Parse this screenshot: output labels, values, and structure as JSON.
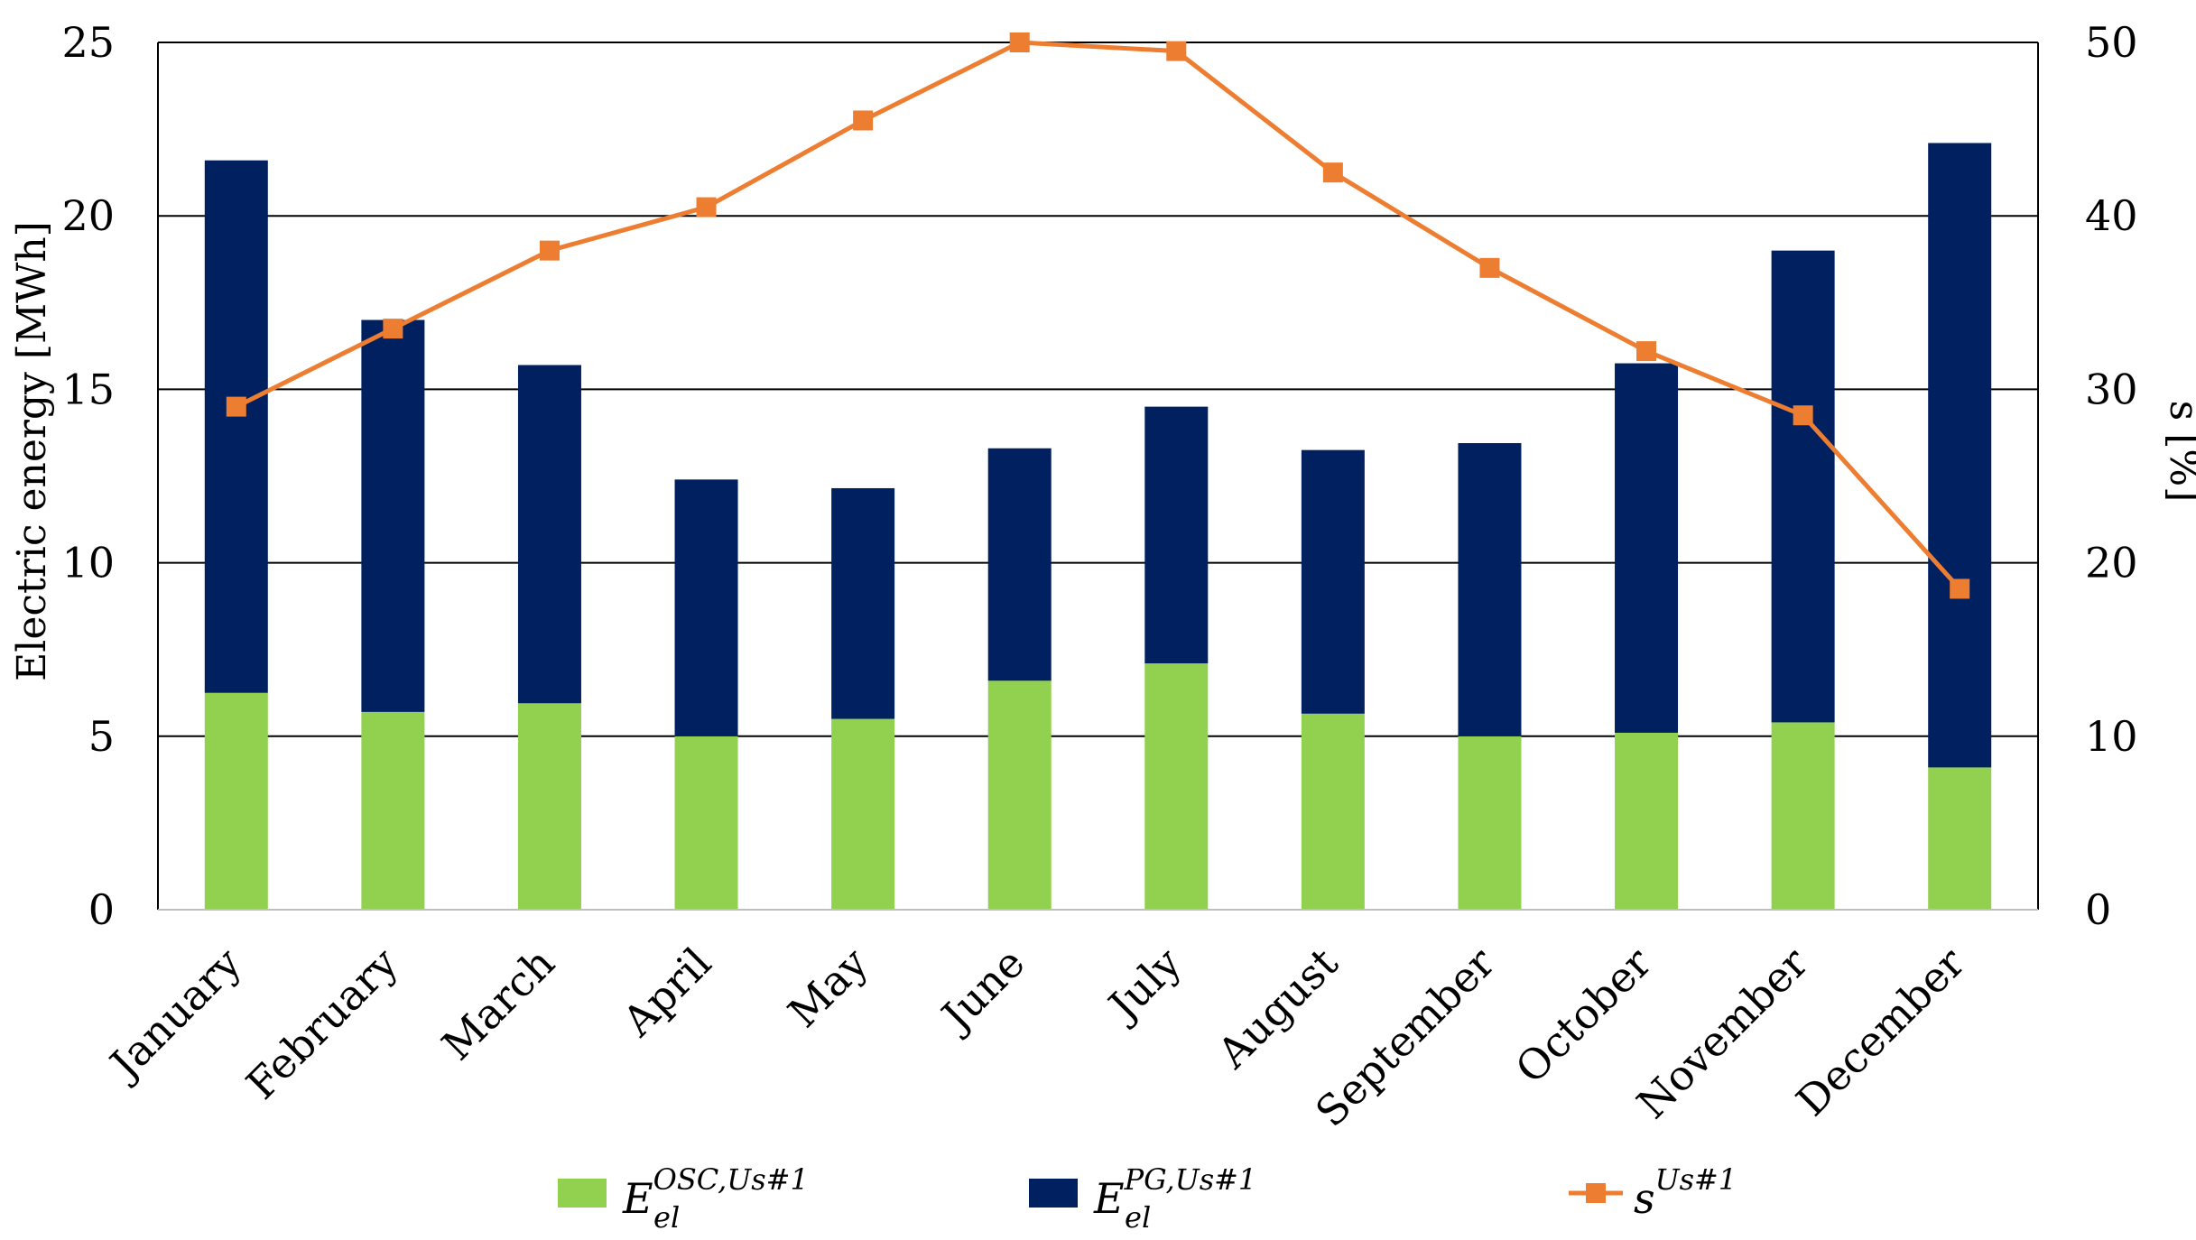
{
  "chart_data": {
    "type": "bar",
    "stacked": true,
    "categories": [
      "January",
      "February",
      "March",
      "April",
      "May",
      "June",
      "July",
      "August",
      "September",
      "October",
      "November",
      "December"
    ],
    "series": [
      {
        "name": "E_el^{OSC,Us#1}",
        "legend": {
          "base": "E",
          "sub": "el",
          "sup": "OSC,Us#1"
        },
        "kind": "bar",
        "axis": "left",
        "color": "#92d050",
        "values": [
          6.25,
          5.7,
          5.95,
          5.0,
          5.5,
          6.6,
          7.1,
          5.65,
          5.0,
          5.1,
          5.4,
          4.1
        ]
      },
      {
        "name": "E_el^{PG,Us#1}",
        "legend": {
          "base": "E",
          "sub": "el",
          "sup": "PG,Us#1"
        },
        "kind": "bar",
        "axis": "left",
        "color": "#002060",
        "values": [
          15.35,
          11.3,
          9.75,
          7.4,
          6.65,
          6.7,
          7.4,
          7.6,
          8.45,
          10.65,
          13.6,
          18.0
        ]
      },
      {
        "name": "s^{Us#1}",
        "legend": {
          "base": "s",
          "sub": "",
          "sup": "Us#1"
        },
        "kind": "line",
        "axis": "right",
        "color": "#ed7d31",
        "values": [
          29.0,
          33.5,
          38.0,
          40.5,
          45.5,
          50.0,
          49.5,
          42.5,
          37.0,
          32.2,
          28.5,
          18.5
        ]
      }
    ],
    "ylabel": "Electric energy [MWh]",
    "ylim": [
      0,
      25
    ],
    "yticks": [
      "0",
      "5",
      "10",
      "15",
      "20",
      "25"
    ],
    "y2label": "s [%]",
    "y2lim": [
      0,
      50
    ],
    "y2ticks": [
      "0",
      "10",
      "20",
      "30",
      "40",
      "50"
    ],
    "grid": true,
    "legend_position": "bottom"
  }
}
